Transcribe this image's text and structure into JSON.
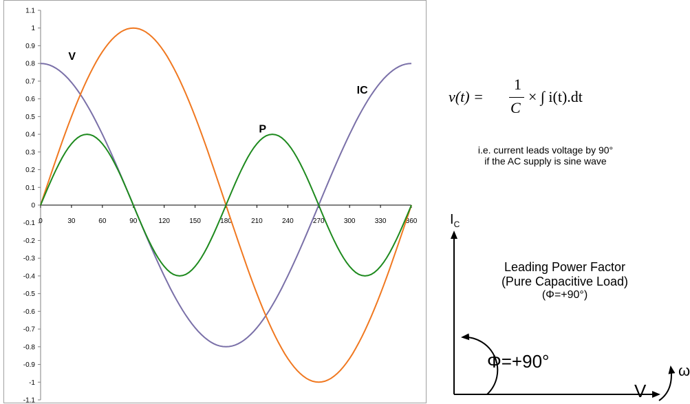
{
  "chart_data": {
    "type": "line",
    "title": "",
    "xlabel": "",
    "ylabel": "",
    "xlim": [
      0,
      360
    ],
    "ylim": [
      -1.1,
      1.1
    ],
    "x_ticks": [
      "0",
      "30",
      "60",
      "90",
      "120",
      "150",
      "180",
      "210",
      "240",
      "270",
      "300",
      "330",
      "360"
    ],
    "y_ticks": [
      "1.1",
      "1",
      "0.9",
      "0.8",
      "0.7",
      "0.6",
      "0.5",
      "0.4",
      "0.3",
      "0.2",
      "0.1",
      "0",
      "-0.1",
      "-0.2",
      "-0.3",
      "-0.4",
      "-0.5",
      "-0.6",
      "-0.7",
      "-0.8",
      "-0.9",
      "-1",
      "-1.1"
    ],
    "grid": false,
    "series": [
      {
        "name": "V",
        "color": "#f07820",
        "x": [
          0,
          30,
          60,
          90,
          120,
          150,
          180,
          210,
          240,
          270,
          300,
          330,
          360
        ],
        "values": [
          0,
          0.5,
          0.866,
          1,
          0.866,
          0.5,
          0,
          -0.5,
          -0.866,
          -1,
          -0.866,
          -0.5,
          0
        ]
      },
      {
        "name": "IC",
        "color": "#7a70a8",
        "x": [
          0,
          30,
          60,
          90,
          120,
          150,
          180,
          210,
          240,
          270,
          300,
          330,
          360
        ],
        "values": [
          0.8,
          0.693,
          0.4,
          0,
          -0.4,
          -0.693,
          -0.8,
          -0.693,
          -0.4,
          0,
          0.4,
          0.693,
          0.8
        ]
      },
      {
        "name": "P",
        "color": "#1e8a1e",
        "x": [
          0,
          45,
          90,
          135,
          180,
          225,
          270,
          315,
          360
        ],
        "values": [
          0,
          0.4,
          0,
          -0.4,
          0,
          0.4,
          0,
          -0.4,
          0
        ]
      }
    ]
  },
  "formula": {
    "lhs": "v(t) =",
    "num": "1",
    "den": "C",
    "rhs": "× ∫ i(t).dt"
  },
  "note": {
    "line1": "i.e. current leads voltage by 90°",
    "line2": "if the AC supply is sine wave"
  },
  "phasor": {
    "ic_label": "I",
    "ic_sub": "C",
    "v_label": "V",
    "omega": "ω",
    "phi_label": "Φ=+90°",
    "pf_line1": "Leading Power Factor",
    "pf_line2": "(Pure Capacitive Load)",
    "pf_line3": "(Φ=+90°)"
  }
}
